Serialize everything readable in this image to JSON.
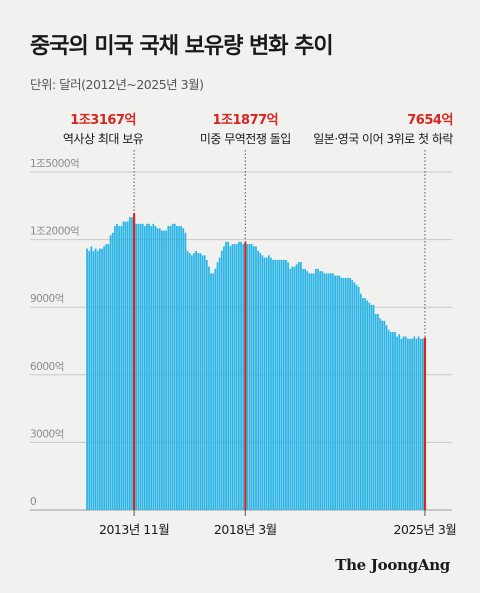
{
  "brand": "The JoongAng",
  "chart_data": {
    "type": "bar",
    "title": "중국의 미국 국채 보유량 변화 추이",
    "subtitle": "단위: 달러(2012년~2025년 3월)",
    "unit": "억 달러",
    "ylim": [
      0,
      15000
    ],
    "yticks": [
      {
        "value": 0,
        "label": "0"
      },
      {
        "value": 3000,
        "label": "3000억"
      },
      {
        "value": 6000,
        "label": "6000억"
      },
      {
        "value": 9000,
        "label": "9000억"
      },
      {
        "value": 12000,
        "label": "1조2000억"
      },
      {
        "value": 15000,
        "label": "1조5000억"
      }
    ],
    "grid": true,
    "x_start": "2012-01",
    "x_end": "2025-03",
    "x_tick_labels": [
      {
        "date": "2013-11",
        "label": "2013년 11월"
      },
      {
        "date": "2018-03",
        "label": "2018년 3월"
      },
      {
        "date": "2025-03",
        "label": "2025년 3월"
      }
    ],
    "annotations": [
      {
        "date": "2013-11",
        "value_label": "1조3167억",
        "text": "역사상 최대 보유",
        "value": 13167
      },
      {
        "date": "2018-03",
        "value_label": "1조1877억",
        "text": "미중 무역전쟁 돌입",
        "value": 11877
      },
      {
        "date": "2025-03",
        "value_label": "7654억",
        "text": "일본·영국 이어 3위로 첫 하락",
        "value": 7654
      }
    ],
    "series": [
      {
        "color": "#2ab5e6",
        "highlight_color": "#d6261f",
        "values": [
          11600,
          11500,
          11700,
          11500,
          11600,
          11500,
          11600,
          11600,
          11700,
          11800,
          11800,
          12200,
          12300,
          12600,
          12700,
          12600,
          12600,
          12800,
          12800,
          12800,
          13000,
          13000,
          13167,
          12700,
          12700,
          12700,
          12700,
          12600,
          12700,
          12700,
          12600,
          12700,
          12600,
          12500,
          12500,
          12400,
          12400,
          12400,
          12600,
          12600,
          12700,
          12700,
          12600,
          12600,
          12600,
          12500,
          12300,
          11500,
          11400,
          11300,
          11400,
          11500,
          11400,
          11400,
          11300,
          11300,
          11100,
          10800,
          10500,
          10500,
          10700,
          11000,
          11200,
          11500,
          11700,
          11900,
          11900,
          11700,
          11800,
          11800,
          11800,
          11900,
          11900,
          11800,
          11877,
          11800,
          11800,
          11800,
          11700,
          11700,
          11500,
          11400,
          11300,
          11200,
          11200,
          11300,
          11200,
          11100,
          11100,
          11100,
          11100,
          11100,
          11100,
          11100,
          11000,
          10700,
          10800,
          10800,
          10900,
          11000,
          11000,
          10700,
          10700,
          10600,
          10500,
          10500,
          10500,
          10700,
          10700,
          10600,
          10600,
          10500,
          10500,
          10500,
          10500,
          10500,
          10400,
          10400,
          10400,
          10300,
          10300,
          10300,
          10300,
          10300,
          10200,
          10100,
          10000,
          9900,
          9600,
          9400,
          9400,
          9300,
          9200,
          9100,
          9100,
          8700,
          8700,
          8500,
          8400,
          8400,
          8200,
          8000,
          7900,
          7900,
          7900,
          7700,
          7800,
          7600,
          7700,
          7700,
          7600,
          7600,
          7600,
          7700,
          7600,
          7700,
          7600,
          7600,
          7654
        ]
      }
    ]
  }
}
